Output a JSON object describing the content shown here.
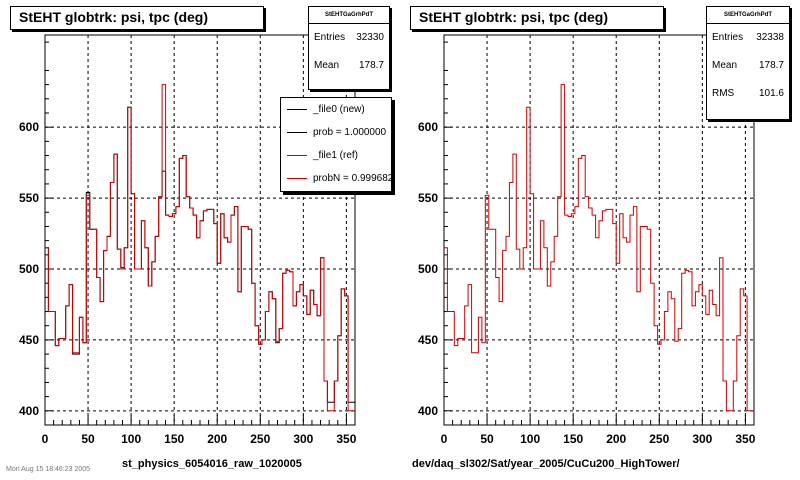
{
  "panels": [
    {
      "title": "StEHT globtrk: psi, tpc (deg)",
      "stats": {
        "name": "StEHTGaGrhPdT",
        "rows": [
          {
            "label": "Entries",
            "value": "32330"
          },
          {
            "label": "Mean",
            "value": "178.7"
          }
        ]
      },
      "legend": [
        {
          "label": "_file0 (new)",
          "color": "#000000"
        },
        {
          "label": "prob = 1.000000",
          "color": "#000000"
        },
        {
          "label": "_file1 (ref)",
          "color": "#cc0000"
        },
        {
          "label": "probN = 0.999682",
          "color": "#cc0000"
        }
      ],
      "xlabel": "st_physics_6054016_raw_1020005"
    },
    {
      "title": "StEHT globtrk: psi, tpc (deg)",
      "stats": {
        "name": "StEHTGaGrhPdT",
        "rows": [
          {
            "label": "Entries",
            "value": "32338"
          },
          {
            "label": "Mean",
            "value": "178.7"
          },
          {
            "label": "RMS",
            "value": "101.6"
          }
        ]
      },
      "xlabel": "dev/daq_sl302/Sat/year_2005/CuCu200_HighTower/"
    }
  ],
  "footer": "Mon Aug 15 18:46:23 2005",
  "chart_data": [
    {
      "type": "line",
      "step": true,
      "title": "StEHT globtrk: psi, tpc (deg)",
      "xlabel": "st_physics_6054016_raw_1020005",
      "xlim": [
        0,
        360
      ],
      "ylim": [
        390,
        665
      ],
      "xticks": [
        0,
        50,
        100,
        150,
        200,
        250,
        300,
        350
      ],
      "yticks": [
        400,
        450,
        500,
        550,
        600
      ],
      "grid": true,
      "legend_position": "top-right",
      "bin_width": 4,
      "series": [
        {
          "name": "_file0 (new)",
          "color": "#000000",
          "values": [
            515,
            470,
            470,
            446,
            451,
            451,
            474,
            489,
            440,
            440,
            466,
            448,
            554,
            528,
            528,
            494,
            477,
            513,
            523,
            561,
            581,
            514,
            501,
            515,
            614,
            553,
            500,
            500,
            534,
            515,
            488,
            505,
            523,
            551,
            569,
            538,
            537,
            539,
            544,
            578,
            580,
            551,
            543,
            538,
            522,
            534,
            541,
            542,
            542,
            532,
            504,
            539,
            522,
            519,
            538,
            544,
            484,
            530,
            530,
            528,
            490,
            460,
            447,
            450,
            470,
            484,
            479,
            448,
            458,
            497,
            499,
            498,
            474,
            484,
            489,
            481,
            468,
            485,
            475,
            467,
            508,
            421,
            406,
            406,
            421,
            453,
            486,
            481,
            406,
            406
          ]
        },
        {
          "name": "_file1 (ref)",
          "color": "#cc0000",
          "values": [
            515,
            470,
            470,
            446,
            451,
            451,
            474,
            489,
            441,
            441,
            466,
            448,
            552,
            528,
            528,
            494,
            477,
            513,
            523,
            561,
            581,
            514,
            500,
            515,
            614,
            553,
            500,
            500,
            534,
            515,
            488,
            505,
            523,
            551,
            630,
            538,
            537,
            539,
            544,
            578,
            580,
            551,
            543,
            538,
            522,
            534,
            541,
            542,
            542,
            532,
            504,
            539,
            522,
            519,
            538,
            544,
            484,
            530,
            530,
            528,
            490,
            460,
            447,
            450,
            470,
            484,
            479,
            449,
            458,
            497,
            499,
            498,
            474,
            484,
            489,
            481,
            468,
            485,
            475,
            467,
            508,
            421,
            400,
            400,
            421,
            453,
            486,
            481,
            400,
            400
          ]
        }
      ]
    },
    {
      "type": "line",
      "step": true,
      "title": "StEHT globtrk: psi, tpc (deg)",
      "xlabel": "dev/daq_sl302/Sat/year_2005/CuCu200_HighTower/",
      "xlim": [
        0,
        360
      ],
      "ylim": [
        390,
        665
      ],
      "xticks": [
        0,
        50,
        100,
        150,
        200,
        250,
        300,
        350
      ],
      "yticks": [
        400,
        450,
        500,
        550,
        600
      ],
      "grid": true,
      "bin_width": 4,
      "series": [
        {
          "color": "#cc0000",
          "values": [
            515,
            470,
            470,
            446,
            451,
            451,
            474,
            489,
            441,
            441,
            466,
            448,
            552,
            528,
            528,
            494,
            477,
            513,
            523,
            561,
            581,
            514,
            500,
            515,
            614,
            553,
            500,
            500,
            534,
            515,
            488,
            505,
            523,
            551,
            630,
            538,
            537,
            539,
            544,
            578,
            580,
            551,
            543,
            538,
            522,
            534,
            541,
            542,
            542,
            532,
            504,
            539,
            522,
            519,
            538,
            544,
            484,
            530,
            530,
            528,
            490,
            460,
            447,
            450,
            470,
            484,
            479,
            449,
            458,
            497,
            499,
            498,
            474,
            484,
            489,
            481,
            468,
            485,
            475,
            467,
            508,
            421,
            400,
            400,
            421,
            453,
            486,
            481,
            400,
            400
          ]
        }
      ]
    }
  ]
}
